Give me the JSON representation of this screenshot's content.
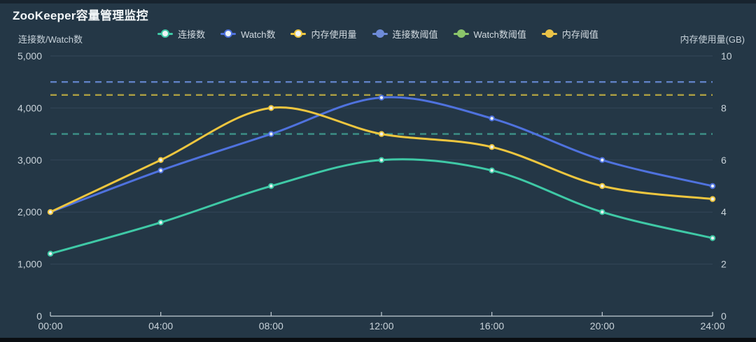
{
  "colors": {
    "background": "#243746",
    "grid": "#334759",
    "axis_line": "#c3ced6",
    "text": "#c9d3da",
    "legend_text": "#d3dbe1",
    "title_text": "#f2f6f8",
    "marker_center": "#edf3f5"
  },
  "chart_data": {
    "type": "line",
    "title": "ZooKeeper容量管理监控",
    "smooth": true,
    "grid": true,
    "legend_position": "top-center",
    "x_categories": [
      "00:00",
      "04:00",
      "08:00",
      "12:00",
      "16:00",
      "20:00",
      "24:00"
    ],
    "left_axis": {
      "name": "连接数/Watch数",
      "min": 0,
      "max": 5000,
      "tick_labels": [
        "0",
        "1,000",
        "2,000",
        "3,000",
        "4,000",
        "5,000"
      ]
    },
    "right_axis": {
      "name": "内存使用量(GB)",
      "min": 0,
      "max": 10,
      "tick_labels": [
        "0",
        "2",
        "4",
        "6",
        "8",
        "10"
      ]
    },
    "series": [
      {
        "key": "connections",
        "name": "连接数",
        "axis": "left",
        "color": "#3fc9a6",
        "values": [
          1200,
          1800,
          2500,
          3000,
          2800,
          2000,
          1500
        ]
      },
      {
        "key": "watch-count",
        "name": "Watch数",
        "axis": "left",
        "color": "#4f72de",
        "values": [
          2000,
          2800,
          3500,
          4200,
          3800,
          3000,
          2500
        ]
      },
      {
        "key": "memory-usage",
        "name": "内存使用量",
        "axis": "right",
        "color": "#eec63f",
        "values": [
          4,
          6,
          8,
          7,
          6.5,
          5,
          4.5
        ]
      }
    ],
    "thresholds": [
      {
        "key": "connections-threshold",
        "name": "连接数阈值",
        "axis": "left",
        "value": 4500,
        "line_color": "#6486cc",
        "legend_color": "#6e8bd8"
      },
      {
        "key": "watch-threshold",
        "name": "Watch数阈值",
        "axis": "left",
        "value": 3500,
        "line_color": "#3f968c",
        "legend_color": "#8bc56a"
      },
      {
        "key": "memory-threshold",
        "name": "内存阈值",
        "axis": "right",
        "value": 8.5,
        "line_color": "#b5a542",
        "legend_color": "#eac348"
      }
    ]
  }
}
